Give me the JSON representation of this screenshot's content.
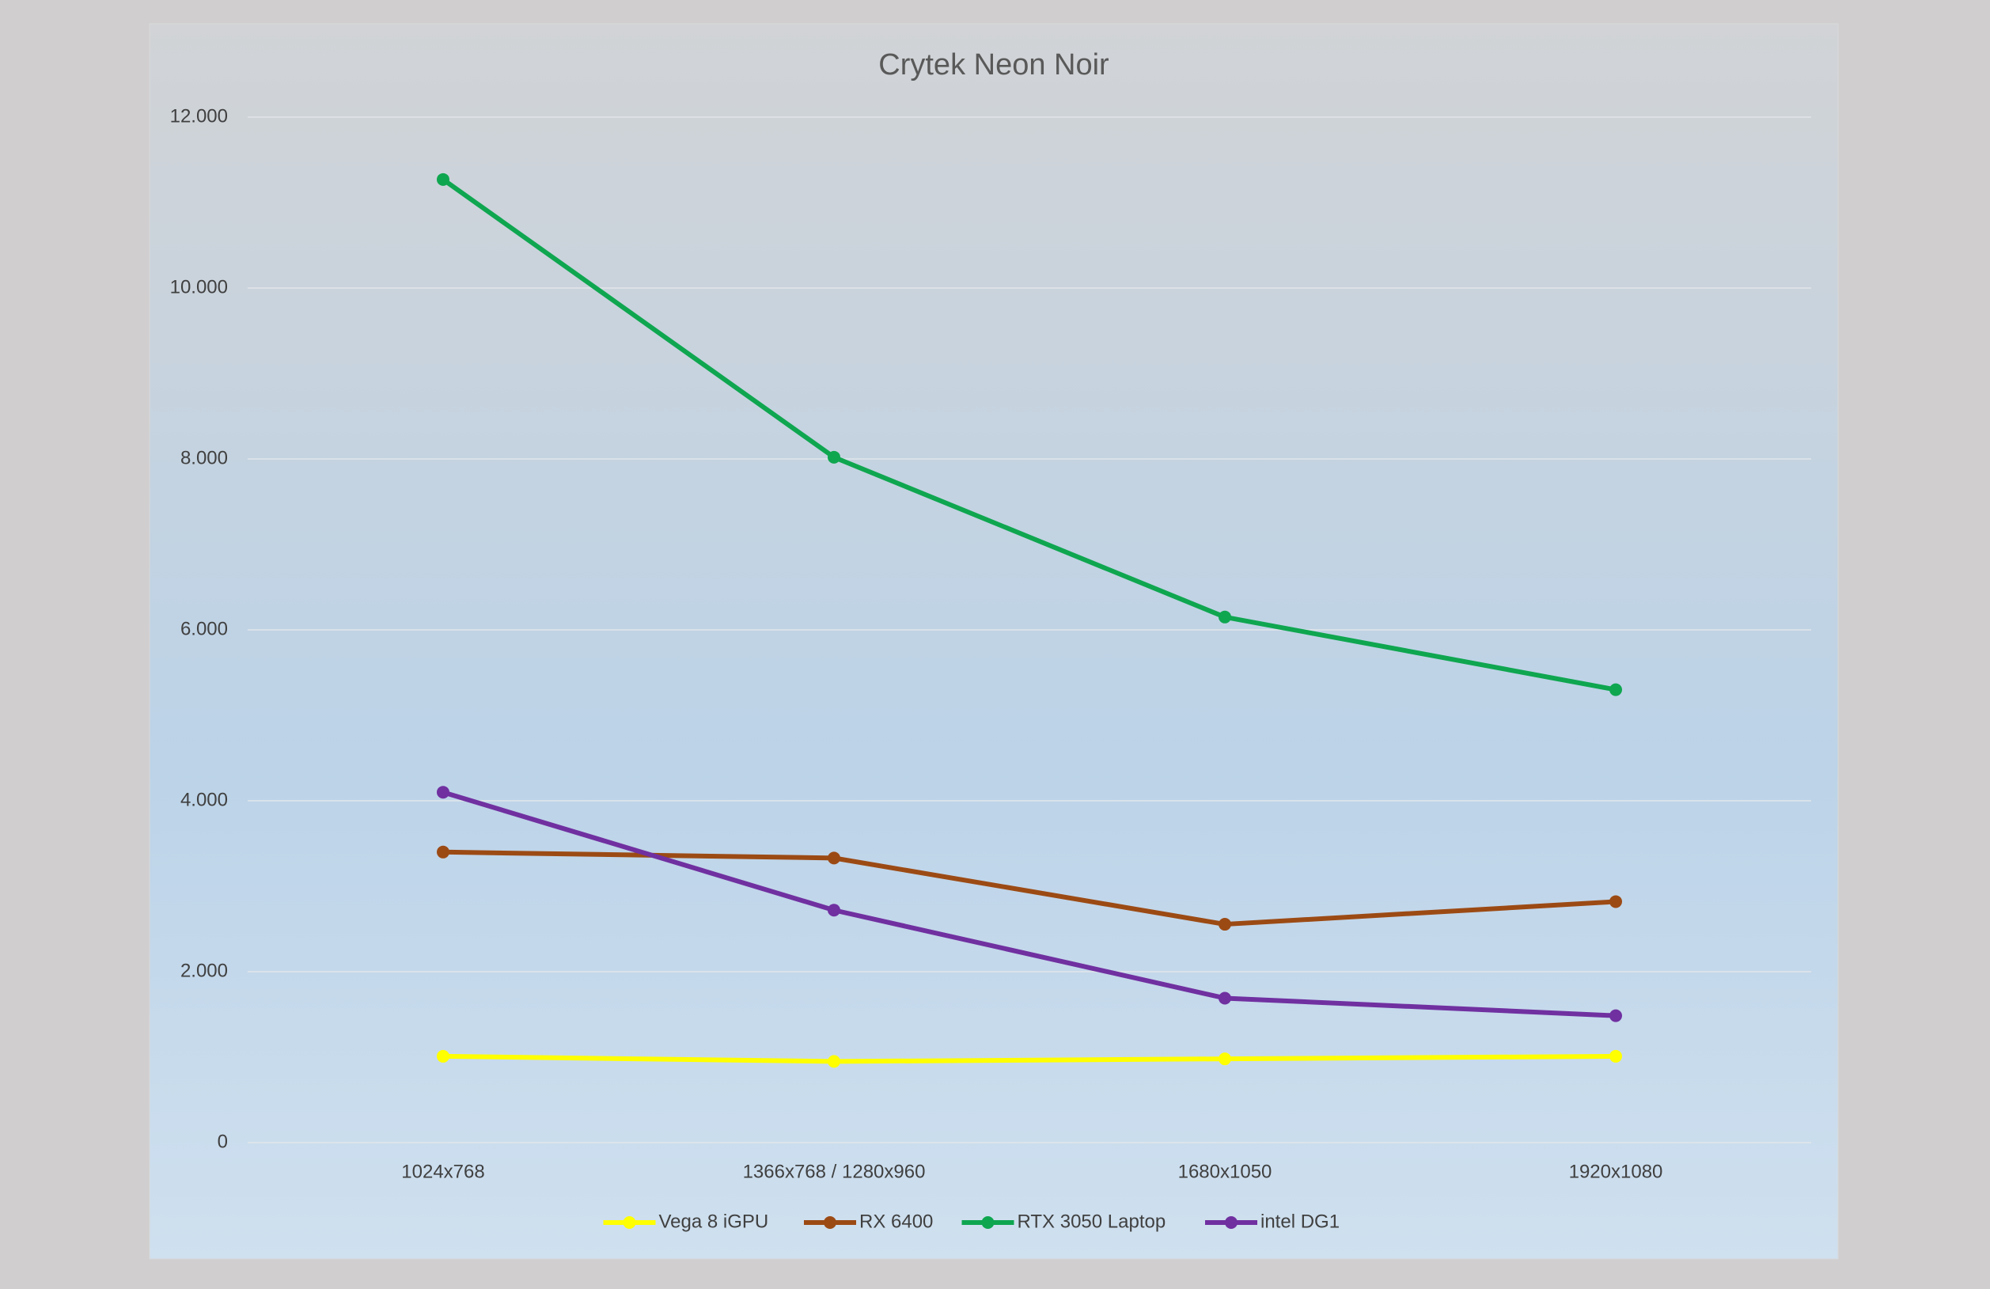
{
  "chart_data": {
    "type": "line",
    "title": "Crytek Neon Noir",
    "categories": [
      "1024x768",
      "1366x768 / 1280x960",
      "1680x1050",
      "1920x1080"
    ],
    "series": [
      {
        "name": "Vega 8 iGPU",
        "color": "#ffff00",
        "values": [
          1010,
          950,
          980,
          1010
        ]
      },
      {
        "name": "RX 6400",
        "color": "#9c4a14",
        "values": [
          3400,
          3330,
          2555,
          2820
        ]
      },
      {
        "name": "RTX 3050 Laptop",
        "color": "#0fa650",
        "values": [
          11270,
          8020,
          6150,
          5300
        ]
      },
      {
        "name": "intel DG1",
        "color": "#7030a0",
        "values": [
          4100,
          2720,
          1690,
          1485
        ]
      }
    ],
    "ylim": [
      0,
      12000
    ],
    "yticks": [
      0,
      {
        "value": 2000,
        "label": "2.000"
      },
      {
        "value": 4000,
        "label": "4.000"
      },
      {
        "value": 6000,
        "label": "6.000"
      },
      {
        "value": 8000,
        "label": "8.000"
      },
      {
        "value": 10000,
        "label": "10.000"
      },
      {
        "value": 12000,
        "label": "12.000"
      }
    ],
    "grid": true,
    "legend": "bottom"
  }
}
